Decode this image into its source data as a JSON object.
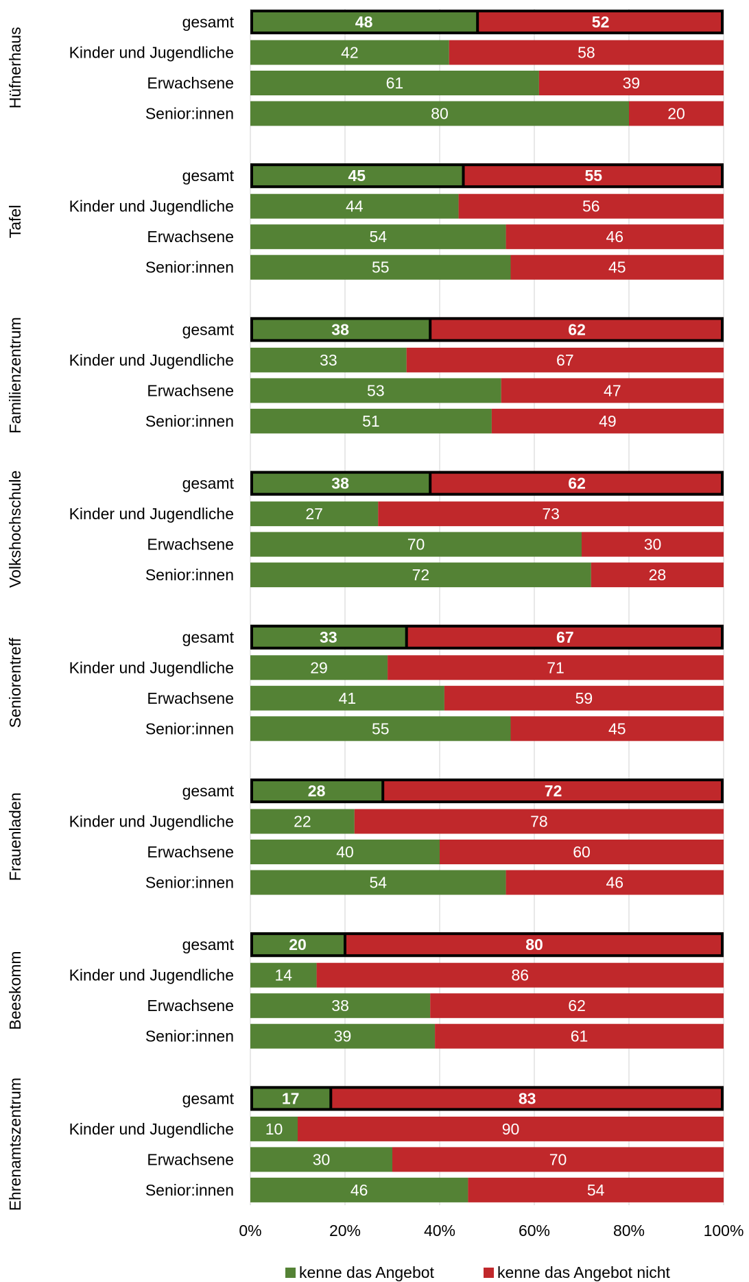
{
  "chart_data": {
    "type": "bar",
    "orientation": "horizontal",
    "stacked": true,
    "xlim": [
      0,
      100
    ],
    "x_ticks": [
      "0%",
      "20%",
      "40%",
      "60%",
      "80%",
      "100%"
    ],
    "grid": true,
    "legend_position": "bottom",
    "colors": {
      "known": "#548235",
      "unknown": "#C0282B"
    },
    "series": [
      {
        "name": "kenne das Angebot"
      },
      {
        "name": "kenne das Angebot nicht"
      }
    ],
    "groups": [
      {
        "name": "Hüfnerhaus",
        "bars": [
          {
            "label": "gesamt",
            "values": [
              48,
              52
            ],
            "total": true
          },
          {
            "label": "Kinder und Jugendliche",
            "values": [
              42,
              58
            ]
          },
          {
            "label": "Erwachsene",
            "values": [
              61,
              39
            ]
          },
          {
            "label": "Senior:innen",
            "values": [
              80,
              20
            ]
          }
        ]
      },
      {
        "name": "Tafel",
        "bars": [
          {
            "label": "gesamt",
            "values": [
              45,
              55
            ],
            "total": true
          },
          {
            "label": "Kinder und Jugendliche",
            "values": [
              44,
              56
            ]
          },
          {
            "label": "Erwachsene",
            "values": [
              54,
              46
            ]
          },
          {
            "label": "Senior:innen",
            "values": [
              55,
              45
            ]
          }
        ]
      },
      {
        "name": "Familienzentrum",
        "bars": [
          {
            "label": "gesamt",
            "values": [
              38,
              62
            ],
            "total": true
          },
          {
            "label": "Kinder und Jugendliche",
            "values": [
              33,
              67
            ]
          },
          {
            "label": "Erwachsene",
            "values": [
              53,
              47
            ]
          },
          {
            "label": "Senior:innen",
            "values": [
              51,
              49
            ]
          }
        ]
      },
      {
        "name": "Volkshochschule",
        "bars": [
          {
            "label": "gesamt",
            "values": [
              38,
              62
            ],
            "total": true
          },
          {
            "label": "Kinder und Jugendliche",
            "values": [
              27,
              73
            ]
          },
          {
            "label": "Erwachsene",
            "values": [
              70,
              30
            ]
          },
          {
            "label": "Senior:innen",
            "values": [
              72,
              28
            ]
          }
        ]
      },
      {
        "name": "Seniorentreff",
        "bars": [
          {
            "label": "gesamt",
            "values": [
              33,
              67
            ],
            "total": true
          },
          {
            "label": "Kinder und Jugendliche",
            "values": [
              29,
              71
            ]
          },
          {
            "label": "Erwachsene",
            "values": [
              41,
              59
            ]
          },
          {
            "label": "Senior:innen",
            "values": [
              55,
              45
            ]
          }
        ]
      },
      {
        "name": "Frauenladen",
        "bars": [
          {
            "label": "gesamt",
            "values": [
              28,
              72
            ],
            "total": true
          },
          {
            "label": "Kinder und Jugendliche",
            "values": [
              22,
              78
            ]
          },
          {
            "label": "Erwachsene",
            "values": [
              40,
              60
            ]
          },
          {
            "label": "Senior:innen",
            "values": [
              54,
              46
            ]
          }
        ]
      },
      {
        "name": "Beeskomm",
        "bars": [
          {
            "label": "gesamt",
            "values": [
              20,
              80
            ],
            "total": true
          },
          {
            "label": "Kinder und Jugendliche",
            "values": [
              14,
              86
            ]
          },
          {
            "label": "Erwachsene",
            "values": [
              38,
              62
            ]
          },
          {
            "label": "Senior:innen",
            "values": [
              39,
              61
            ]
          }
        ]
      },
      {
        "name": "Ehrenamtszentrum",
        "bars": [
          {
            "label": "gesamt",
            "values": [
              17,
              83
            ],
            "total": true
          },
          {
            "label": "Kinder und Jugendliche",
            "values": [
              10,
              90
            ]
          },
          {
            "label": "Erwachsene",
            "values": [
              30,
              70
            ]
          },
          {
            "label": "Senior:innen",
            "values": [
              46,
              54
            ]
          }
        ]
      }
    ]
  }
}
